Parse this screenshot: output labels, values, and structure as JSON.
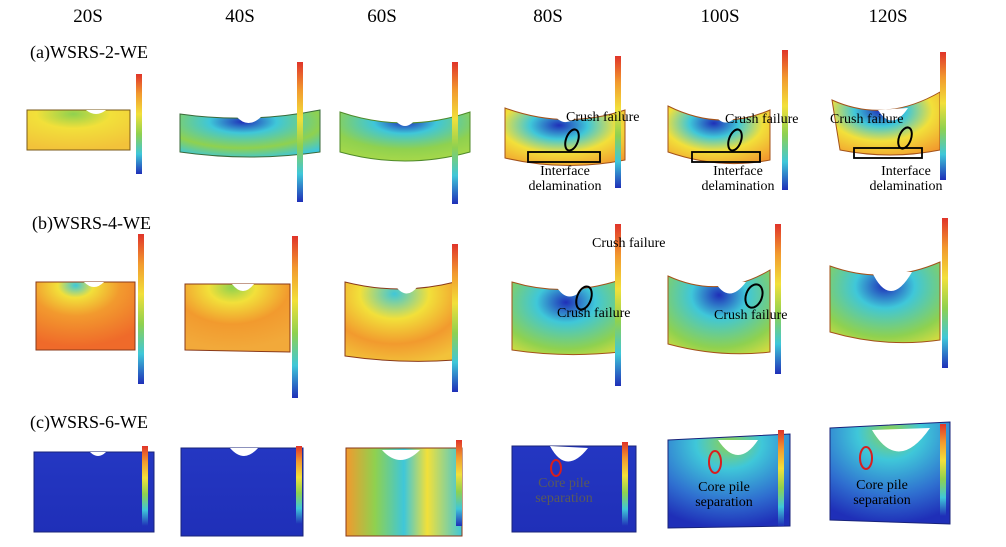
{
  "columns": [
    {
      "label": "20S"
    },
    {
      "label": "40S"
    },
    {
      "label": "60S"
    },
    {
      "label": "80S"
    },
    {
      "label": "100S"
    },
    {
      "label": "120S"
    }
  ],
  "rows": [
    {
      "label": "(a)WSRS-2-WE",
      "annotations": {
        "crush_failure": "Crush failure",
        "interface_delamination_line1": "Interface",
        "interface_delamination_line2": "delamination"
      }
    },
    {
      "label": "(b)WSRS-4-WE",
      "annotations": {
        "crush_failure": "Crush failure"
      }
    },
    {
      "label": "(c)WSRS-6-WE",
      "annotations": {
        "core_pile_line1": "Core pile",
        "core_pile_line2": "separation"
      }
    }
  ],
  "colors": {
    "blue": "#1f2fb8",
    "cyan": "#3fc7d9",
    "green": "#8fd14f",
    "yellow": "#f2e03a",
    "orange": "#f29a2e",
    "red": "#e0342a"
  }
}
